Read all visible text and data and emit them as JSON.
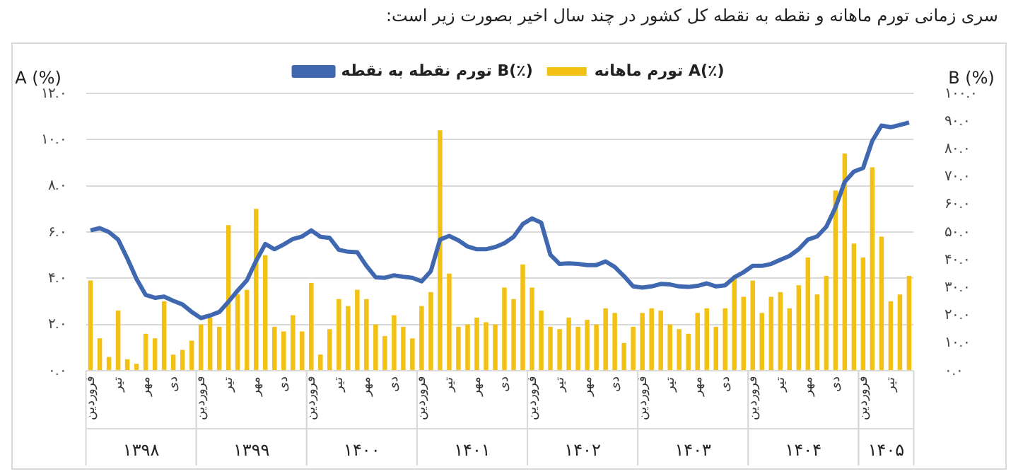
{
  "chart_data": {
    "type": "bar",
    "title": "سری زمانی تورم ماهانه و نقطه به نقطه کل کشور در چند سال اخیر بصورت زیر است:",
    "ylabel": "A (%)",
    "y2label": "B (%)",
    "categories": [
      "فروردین",
      null,
      null,
      "تیر",
      null,
      null,
      "مهر",
      null,
      null,
      "دی",
      null,
      null,
      "فروردین",
      null,
      null,
      "تیر",
      null,
      null,
      "مهر",
      null,
      null,
      "دی",
      null,
      null,
      "فروردین",
      null,
      null,
      "تیر",
      null,
      null,
      "مهر",
      null,
      null,
      "دی",
      null,
      null,
      "فروردین",
      null,
      null,
      "تیر",
      null,
      null,
      "مهر",
      null,
      null,
      "دی",
      null,
      null,
      "فروردین",
      null,
      null,
      "تیر",
      null,
      null,
      "مهر",
      null,
      null,
      "دی",
      null,
      null,
      "فروردین",
      null,
      null,
      "تیر",
      null,
      null,
      "مهر",
      null,
      null,
      "دی",
      null,
      null,
      "فروردین",
      null,
      null,
      "تیر",
      null,
      null,
      "مهر",
      null,
      null,
      "دی",
      null,
      null,
      "فروردین",
      null,
      null,
      "تیر",
      null,
      null
    ],
    "annotations": [
      "۱۳۹۸",
      "۱۳۹۹",
      "۱۴۰۰",
      "۱۴۰۱",
      "۱۴۰۲",
      "۱۴۰۳",
      "۱۴۰۴",
      "۱۴۰۵"
    ],
    "series": [
      {
        "name": "تورم ماهانه A(٪)",
        "color": "#f2c114",
        "values": [
          3.9,
          1.4,
          0.6,
          2.6,
          0.5,
          0.3,
          1.6,
          1.4,
          3.0,
          0.7,
          0.9,
          1.3,
          2.0,
          2.3,
          1.9,
          6.3,
          3.3,
          3.5,
          7.0,
          5.0,
          1.9,
          1.7,
          2.4,
          1.7,
          3.8,
          0.7,
          1.8,
          3.1,
          2.8,
          3.5,
          3.1,
          2.0,
          1.5,
          2.4,
          1.9,
          1.4,
          2.8,
          3.4,
          10.4,
          4.2,
          1.9,
          2.0,
          2.3,
          2.1,
          2.0,
          3.6,
          3.1,
          4.6,
          3.6,
          2.6,
          1.9,
          1.8,
          2.3,
          1.9,
          2.2,
          2.0,
          2.7,
          2.5,
          1.2,
          1.9,
          2.5,
          2.7,
          2.6,
          2.0,
          1.8,
          1.6,
          2.5,
          2.7,
          1.9,
          2.7,
          4.0,
          3.2,
          3.9,
          2.5,
          3.2,
          3.4,
          2.7,
          3.7,
          4.9,
          3.3,
          4.1,
          7.8,
          9.4,
          5.5,
          4.9,
          8.8,
          5.8,
          3.0,
          3.3,
          4.1
        ]
      },
      {
        "name": "تورم نقطه به نقطه B(٪)",
        "type": "line",
        "axis": "y2",
        "color": "#4068b0",
        "values": [
          50.6,
          51.4,
          50,
          47.3,
          40.5,
          33.1,
          27.3,
          26.3,
          26.7,
          25.2,
          23.9,
          21.2,
          19,
          19.9,
          21.2,
          24.9,
          28.9,
          32.6,
          39.6,
          45.7,
          43.8,
          45.5,
          47.5,
          48.4,
          50.6,
          48.3,
          47.9,
          43.6,
          42.9,
          42.7,
          37.8,
          33.7,
          33.5,
          34.4,
          33.9,
          33.5,
          32.2,
          35.9,
          47.3,
          48.6,
          47,
          44.8,
          43.8,
          43.8,
          44.6,
          46,
          48.3,
          52.9,
          54.9,
          53.4,
          41.8,
          38.5,
          38.7,
          38.5,
          38.1,
          38.1,
          39.4,
          37.4,
          34.1,
          30.4,
          30,
          30.4,
          31.3,
          31.1,
          30.4,
          30.2,
          30.6,
          31.5,
          30.4,
          30.8,
          33.7,
          35.5,
          37.8,
          37.8,
          38.5,
          40,
          41.4,
          43.8,
          47.3,
          48.4,
          51.9,
          58.9,
          68.1,
          71.8,
          73.1,
          82.9,
          88.4,
          87.8,
          88.6,
          89.5
        ]
      }
    ],
    "ylim": [
      0,
      12
    ],
    "yticks": [
      {
        "value": 0,
        "label": "۰.۰"
      },
      {
        "value": 2,
        "label": "۲.۰"
      },
      {
        "value": 4,
        "label": "۴.۰"
      },
      {
        "value": 6,
        "label": "۶.۰"
      },
      {
        "value": 8,
        "label": "۸.۰"
      },
      {
        "value": 10,
        "label": "۱۰.۰"
      },
      {
        "value": 12,
        "label": "۱۲.۰"
      }
    ],
    "y2lim": [
      0,
      100
    ],
    "y2ticks": [
      {
        "value": 0,
        "label": "۰.۰"
      },
      {
        "value": 10,
        "label": "۱۰.۰"
      },
      {
        "value": 20,
        "label": "۲۰.۰"
      },
      {
        "value": 30,
        "label": "۳۰.۰"
      },
      {
        "value": 40,
        "label": "۴۰.۰"
      },
      {
        "value": 50,
        "label": "۵۰.۰"
      },
      {
        "value": 60,
        "label": "۶۰.۰"
      },
      {
        "value": 70,
        "label": "۷۰.۰"
      },
      {
        "value": 80,
        "label": "۸۰.۰"
      },
      {
        "value": 90,
        "label": "۹۰.۰"
      },
      {
        "value": 100,
        "label": "۱۰۰.۰"
      }
    ],
    "grid": "y",
    "legend": "top",
    "marker": "none"
  }
}
